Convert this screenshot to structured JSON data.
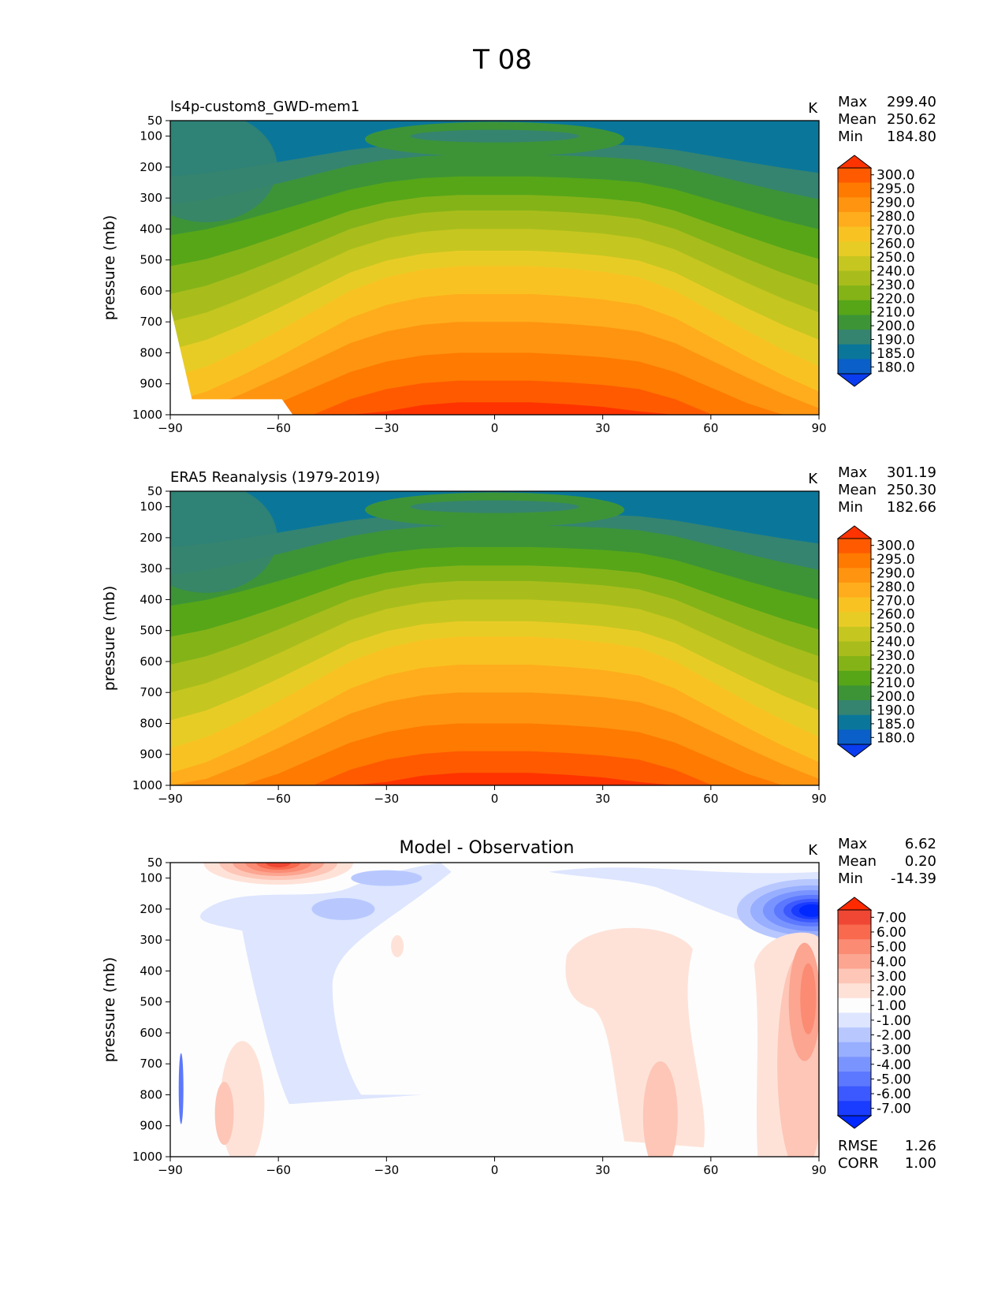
{
  "figure_title": "T 08",
  "chart_data": [
    {
      "type": "heatmap",
      "panel": "model",
      "title": "ls4p-custom8_GWD-mem1",
      "units": "K",
      "xlabel": "",
      "ylabel": "pressure (mb)",
      "xlim": [
        -90,
        90
      ],
      "ylim": [
        1000,
        50
      ],
      "x_ticks": [
        "−90",
        "−60",
        "−30",
        "0",
        "30",
        "60",
        "90"
      ],
      "y_ticks": [
        "50",
        "100",
        "200",
        "300",
        "400",
        "500",
        "600",
        "700",
        "800",
        "900",
        "1000"
      ],
      "stats": [
        {
          "label": "Max",
          "value": "299.40"
        },
        {
          "label": "Mean",
          "value": "250.62"
        },
        {
          "label": "Min",
          "value": "184.80"
        }
      ],
      "colorbar_levels": [
        "300.0",
        "295.0",
        "290.0",
        "280.0",
        "270.0",
        "260.0",
        "250.0",
        "240.0",
        "230.0",
        "220.0",
        "210.0",
        "200.0",
        "190.0",
        "185.0",
        "180.0"
      ],
      "colorbar_colors": [
        "#ff3300",
        "#ff5a00",
        "#ff7a00",
        "#ff9410",
        "#ffad1c",
        "#f8c322",
        "#e8cc26",
        "#c6c620",
        "#a8bd1b",
        "#84b318",
        "#56a618",
        "#3d9437",
        "#358470",
        "#0a779a",
        "#0a5fc8",
        "#0a3cf0"
      ]
    },
    {
      "type": "heatmap",
      "panel": "observation",
      "title": "ERA5 Reanalysis (1979-2019)",
      "units": "K",
      "xlabel": "",
      "ylabel": "pressure (mb)",
      "xlim": [
        -90,
        90
      ],
      "ylim": [
        1000,
        50
      ],
      "x_ticks": [
        "−90",
        "−60",
        "−30",
        "0",
        "30",
        "60",
        "90"
      ],
      "y_ticks": [
        "50",
        "100",
        "200",
        "300",
        "400",
        "500",
        "600",
        "700",
        "800",
        "900",
        "1000"
      ],
      "stats": [
        {
          "label": "Max",
          "value": "301.19"
        },
        {
          "label": "Mean",
          "value": "250.30"
        },
        {
          "label": "Min",
          "value": "182.66"
        }
      ],
      "colorbar_levels": [
        "300.0",
        "295.0",
        "290.0",
        "280.0",
        "270.0",
        "260.0",
        "250.0",
        "240.0",
        "230.0",
        "220.0",
        "210.0",
        "200.0",
        "190.0",
        "185.0",
        "180.0"
      ],
      "colorbar_colors": [
        "#ff3300",
        "#ff5a00",
        "#ff7a00",
        "#ff9410",
        "#ffad1c",
        "#f8c322",
        "#e8cc26",
        "#c6c620",
        "#a8bd1b",
        "#84b318",
        "#56a618",
        "#3d9437",
        "#358470",
        "#0a779a",
        "#0a5fc8",
        "#0a3cf0"
      ]
    },
    {
      "type": "heatmap",
      "panel": "difference",
      "title": "Model - Observation",
      "units": "K",
      "xlabel": "",
      "ylabel": "pressure (mb)",
      "xlim": [
        -90,
        90
      ],
      "ylim": [
        1000,
        50
      ],
      "x_ticks": [
        "−90",
        "−60",
        "−30",
        "0",
        "30",
        "60",
        "90"
      ],
      "y_ticks": [
        "50",
        "100",
        "200",
        "300",
        "400",
        "500",
        "600",
        "700",
        "800",
        "900",
        "1000"
      ],
      "stats": [
        {
          "label": "Max",
          "value": "6.62"
        },
        {
          "label": "Mean",
          "value": "0.20"
        },
        {
          "label": "Min",
          "value": "-14.39"
        }
      ],
      "extra_stats": [
        {
          "label": "RMSE",
          "value": "1.26"
        },
        {
          "label": "CORR",
          "value": "1.00"
        }
      ],
      "colorbar_levels": [
        "7.00",
        "6.00",
        "5.00",
        "4.00",
        "3.00",
        "2.00",
        "1.00",
        "-1.00",
        "-2.00",
        "-3.00",
        "-4.00",
        "-5.00",
        "-6.00",
        "-7.00"
      ],
      "colorbar_colors": [
        "#ff2a00",
        "#ef4733",
        "#f8694e",
        "#fb8b73",
        "#fca591",
        "#fdc6b6",
        "#fee2d8",
        "#fdfdfd",
        "#dde5ff",
        "#b8c8ff",
        "#98aeff",
        "#7a94ff",
        "#5c78ff",
        "#3c59ff",
        "#1a3cff",
        "#0028ff"
      ]
    }
  ]
}
